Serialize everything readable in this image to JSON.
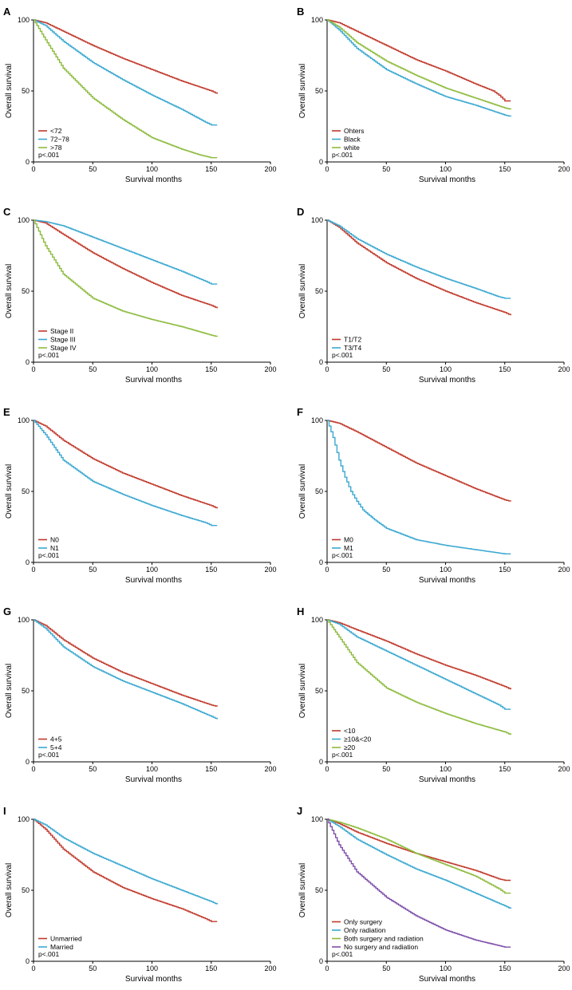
{
  "chart_data": [
    {
      "type": "line",
      "panel": "A",
      "xlabel": "Survival months",
      "ylabel": "Overall survival",
      "xlim": [
        0,
        200
      ],
      "ylim": [
        0,
        100
      ],
      "xticks": [
        "0",
        "50",
        "100",
        "150",
        "200"
      ],
      "yticks": [
        "0",
        "50",
        "100"
      ],
      "pvalue": "p<.001",
      "series": [
        {
          "name": "<72",
          "color": "#c0392b",
          "x": [
            0,
            10,
            25,
            50,
            75,
            100,
            125,
            150,
            155
          ],
          "y": [
            100,
            98,
            92,
            82,
            73,
            65,
            57,
            50,
            48
          ]
        },
        {
          "name": "72~78",
          "color": "#3aa8d0",
          "x": [
            0,
            10,
            25,
            50,
            75,
            100,
            125,
            145,
            150,
            155
          ],
          "y": [
            100,
            96,
            85,
            70,
            58,
            47,
            37,
            28,
            26,
            26
          ]
        },
        {
          "name": ">78",
          "color": "#8dbb3e",
          "x": [
            0,
            10,
            25,
            50,
            75,
            100,
            125,
            140,
            150,
            155
          ],
          "y": [
            100,
            86,
            66,
            45,
            30,
            17,
            9,
            5,
            3,
            3
          ]
        }
      ]
    },
    {
      "type": "line",
      "panel": "B",
      "xlabel": "Survival months",
      "ylabel": "Overall survival",
      "xlim": [
        0,
        200
      ],
      "ylim": [
        0,
        100
      ],
      "xticks": [
        "0",
        "50",
        "100",
        "150",
        "200"
      ],
      "yticks": [
        "0",
        "50",
        "100"
      ],
      "pvalue": "p<.001",
      "series": [
        {
          "name": "Ohters",
          "color": "#c0392b",
          "x": [
            0,
            10,
            25,
            50,
            75,
            100,
            125,
            140,
            145,
            150,
            155
          ],
          "y": [
            100,
            98,
            92,
            82,
            72,
            64,
            55,
            50,
            47,
            43,
            43
          ]
        },
        {
          "name": "Black",
          "color": "#3aa8d0",
          "x": [
            0,
            10,
            25,
            50,
            75,
            100,
            125,
            150,
            155
          ],
          "y": [
            100,
            93,
            80,
            65,
            55,
            46,
            40,
            33,
            32
          ]
        },
        {
          "name": "white",
          "color": "#8dbb3e",
          "x": [
            0,
            10,
            25,
            50,
            75,
            100,
            125,
            150,
            155
          ],
          "y": [
            100,
            95,
            84,
            71,
            61,
            52,
            45,
            38,
            37
          ]
        }
      ]
    },
    {
      "type": "line",
      "panel": "C",
      "xlabel": "Survival months",
      "ylabel": "Overall survival",
      "xlim": [
        0,
        200
      ],
      "ylim": [
        0,
        100
      ],
      "xticks": [
        "0",
        "50",
        "100",
        "150",
        "200"
      ],
      "yticks": [
        "0",
        "50",
        "100"
      ],
      "pvalue": "p<.001",
      "series": [
        {
          "name": "Stage II",
          "color": "#c0392b",
          "x": [
            0,
            10,
            25,
            50,
            75,
            100,
            125,
            150,
            155
          ],
          "y": [
            100,
            98,
            90,
            77,
            66,
            56,
            47,
            40,
            38
          ]
        },
        {
          "name": "Stage III",
          "color": "#3aa8d0",
          "x": [
            0,
            10,
            25,
            50,
            75,
            100,
            125,
            145,
            150,
            155
          ],
          "y": [
            100,
            99,
            96,
            88,
            80,
            72,
            64,
            57,
            55,
            55
          ]
        },
        {
          "name": "Stage IV",
          "color": "#8dbb3e",
          "x": [
            0,
            10,
            25,
            50,
            75,
            100,
            125,
            150,
            155
          ],
          "y": [
            100,
            82,
            62,
            45,
            36,
            30,
            25,
            19,
            18
          ]
        }
      ]
    },
    {
      "type": "line",
      "panel": "D",
      "xlabel": "Survival months",
      "ylabel": "Overall survival",
      "xlim": [
        0,
        200
      ],
      "ylim": [
        0,
        100
      ],
      "xticks": [
        "0",
        "50",
        "100",
        "150",
        "200"
      ],
      "yticks": [
        "0",
        "50",
        "100"
      ],
      "pvalue": "p<.001",
      "series": [
        {
          "name": "T1/T2",
          "color": "#c0392b",
          "x": [
            0,
            10,
            25,
            50,
            75,
            100,
            125,
            150,
            155
          ],
          "y": [
            100,
            95,
            84,
            70,
            59,
            50,
            42,
            35,
            33
          ]
        },
        {
          "name": "T3/T4",
          "color": "#3aa8d0",
          "x": [
            0,
            10,
            25,
            50,
            75,
            100,
            125,
            145,
            150,
            155
          ],
          "y": [
            100,
            96,
            87,
            76,
            67,
            59,
            52,
            46,
            45,
            45
          ]
        }
      ]
    },
    {
      "type": "line",
      "panel": "E",
      "xlabel": "Survival months",
      "ylabel": "Overall survival",
      "xlim": [
        0,
        200
      ],
      "ylim": [
        0,
        100
      ],
      "xticks": [
        "0",
        "50",
        "100",
        "150",
        "200"
      ],
      "yticks": [
        "0",
        "50",
        "100"
      ],
      "pvalue": "p<.001",
      "series": [
        {
          "name": "N0",
          "color": "#c0392b",
          "x": [
            0,
            10,
            25,
            50,
            75,
            100,
            125,
            150,
            155
          ],
          "y": [
            100,
            96,
            86,
            73,
            63,
            55,
            47,
            40,
            38
          ]
        },
        {
          "name": "N1",
          "color": "#3aa8d0",
          "x": [
            0,
            10,
            25,
            50,
            75,
            100,
            125,
            145,
            150,
            155
          ],
          "y": [
            100,
            90,
            72,
            57,
            48,
            40,
            33,
            28,
            26,
            26
          ]
        }
      ]
    },
    {
      "type": "line",
      "panel": "F",
      "xlabel": "Survival months",
      "ylabel": "Overall survival",
      "xlim": [
        0,
        200
      ],
      "ylim": [
        0,
        100
      ],
      "xticks": [
        "0",
        "50",
        "100",
        "150",
        "200"
      ],
      "yticks": [
        "0",
        "50",
        "100"
      ],
      "pvalue": "p<.001",
      "series": [
        {
          "name": "M0",
          "color": "#c0392b",
          "x": [
            0,
            10,
            25,
            50,
            75,
            100,
            125,
            150,
            155
          ],
          "y": [
            100,
            98,
            92,
            81,
            70,
            61,
            52,
            44,
            43
          ]
        },
        {
          "name": "M1",
          "color": "#3aa8d0",
          "x": [
            0,
            5,
            10,
            15,
            20,
            25,
            30,
            40,
            50,
            75,
            100,
            125,
            150,
            155
          ],
          "y": [
            100,
            88,
            72,
            60,
            50,
            43,
            37,
            30,
            24,
            16,
            12,
            9,
            6,
            6
          ]
        }
      ]
    },
    {
      "type": "line",
      "panel": "G",
      "xlabel": "Survival months",
      "ylabel": "Overall survival",
      "xlim": [
        0,
        200
      ],
      "ylim": [
        0,
        100
      ],
      "xticks": [
        "0",
        "50",
        "100",
        "150",
        "200"
      ],
      "yticks": [
        "0",
        "50",
        "100"
      ],
      "pvalue": "p<.001",
      "series": [
        {
          "name": "4+5",
          "color": "#c0392b",
          "x": [
            0,
            10,
            25,
            50,
            75,
            100,
            125,
            150,
            155
          ],
          "y": [
            100,
            96,
            86,
            73,
            63,
            55,
            47,
            40,
            39
          ]
        },
        {
          "name": "5+4",
          "color": "#3aa8d0",
          "x": [
            0,
            10,
            25,
            50,
            75,
            100,
            125,
            150,
            155
          ],
          "y": [
            100,
            94,
            81,
            67,
            57,
            49,
            41,
            32,
            30
          ]
        }
      ]
    },
    {
      "type": "line",
      "panel": "H",
      "xlabel": "Survival months",
      "ylabel": "Overall survival",
      "xlim": [
        0,
        200
      ],
      "ylim": [
        0,
        100
      ],
      "xticks": [
        "0",
        "50",
        "100",
        "150",
        "200"
      ],
      "yticks": [
        "0",
        "50",
        "100"
      ],
      "pvalue": "p<.001",
      "series": [
        {
          "name": "<10",
          "color": "#c0392b",
          "x": [
            0,
            10,
            25,
            50,
            75,
            100,
            125,
            150,
            155
          ],
          "y": [
            100,
            98,
            93,
            85,
            76,
            68,
            61,
            53,
            51
          ]
        },
        {
          "name": "≥10&<20",
          "color": "#3aa8d0",
          "x": [
            0,
            10,
            25,
            50,
            75,
            100,
            125,
            145,
            150,
            155
          ],
          "y": [
            100,
            97,
            88,
            78,
            68,
            58,
            48,
            40,
            37,
            37
          ]
        },
        {
          "name": "≥20",
          "color": "#8dbb3e",
          "x": [
            0,
            10,
            25,
            50,
            75,
            100,
            125,
            150,
            155
          ],
          "y": [
            100,
            88,
            70,
            52,
            42,
            34,
            27,
            21,
            19
          ]
        }
      ]
    },
    {
      "type": "line",
      "panel": "I",
      "xlabel": "Survival months",
      "ylabel": "Overall survival",
      "xlim": [
        0,
        200
      ],
      "ylim": [
        0,
        100
      ],
      "xticks": [
        "0",
        "50",
        "100",
        "150",
        "200"
      ],
      "yticks": [
        "0",
        "50",
        "100"
      ],
      "pvalue": "p<.001",
      "series": [
        {
          "name": "Unmarried",
          "color": "#c0392b",
          "x": [
            0,
            10,
            25,
            50,
            75,
            100,
            125,
            145,
            150,
            155
          ],
          "y": [
            100,
            93,
            79,
            63,
            52,
            44,
            37,
            30,
            28,
            28
          ]
        },
        {
          "name": "Married",
          "color": "#3aa8d0",
          "x": [
            0,
            10,
            25,
            50,
            75,
            100,
            125,
            150,
            155
          ],
          "y": [
            100,
            96,
            87,
            76,
            67,
            58,
            50,
            42,
            40
          ]
        }
      ]
    },
    {
      "type": "line",
      "panel": "J",
      "xlabel": "Survival months",
      "ylabel": "Overall survival",
      "xlim": [
        0,
        200
      ],
      "ylim": [
        0,
        100
      ],
      "xticks": [
        "0",
        "50",
        "100",
        "150",
        "200"
      ],
      "yticks": [
        "0",
        "50",
        "100"
      ],
      "pvalue": "p<.001",
      "series": [
        {
          "name": "Only surgery",
          "color": "#c0392b",
          "x": [
            0,
            10,
            25,
            50,
            75,
            100,
            125,
            145,
            150,
            155
          ],
          "y": [
            100,
            97,
            91,
            83,
            76,
            70,
            64,
            58,
            57,
            57
          ]
        },
        {
          "name": "Only radiation",
          "color": "#3aa8d0",
          "x": [
            0,
            10,
            25,
            50,
            75,
            100,
            125,
            150,
            155
          ],
          "y": [
            100,
            95,
            86,
            75,
            65,
            57,
            48,
            39,
            37
          ]
        },
        {
          "name": "Both surgery and radiation",
          "color": "#8dbb3e",
          "x": [
            0,
            10,
            25,
            50,
            75,
            100,
            125,
            145,
            150,
            155
          ],
          "y": [
            100,
            98,
            94,
            86,
            76,
            68,
            60,
            51,
            48,
            48
          ]
        },
        {
          "name": "No surgery and radiation",
          "color": "#7d4fa8",
          "x": [
            0,
            10,
            25,
            50,
            75,
            100,
            125,
            150,
            155
          ],
          "y": [
            100,
            82,
            63,
            45,
            32,
            22,
            15,
            10,
            10
          ]
        }
      ]
    }
  ]
}
